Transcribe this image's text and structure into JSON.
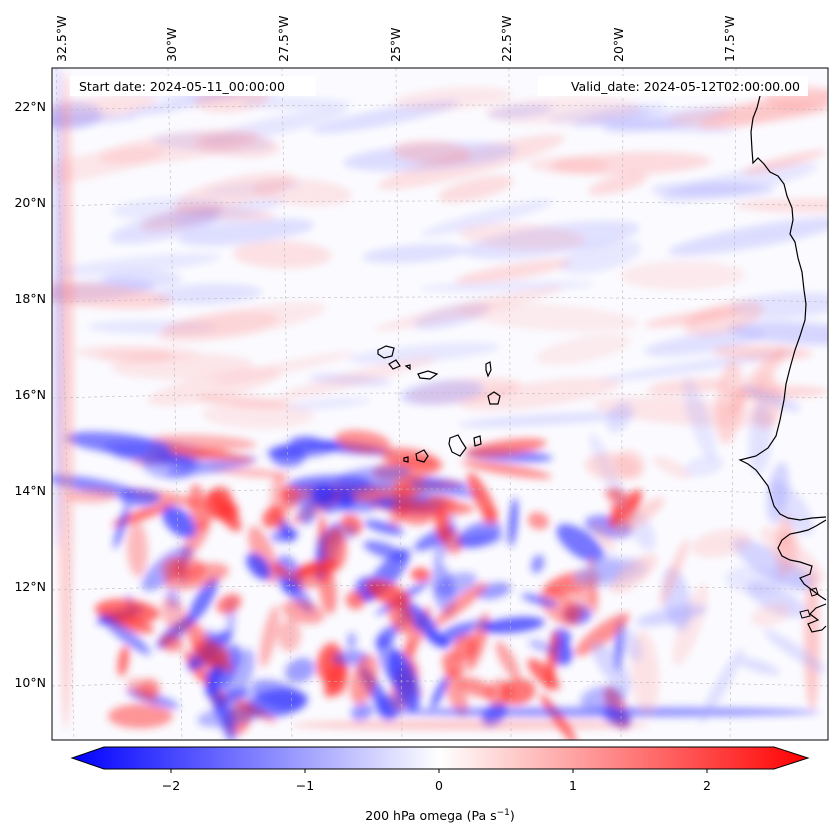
{
  "map": {
    "lon_labels": [
      "32.5°W",
      "30°W",
      "27.5°W",
      "25°W",
      "22.5°W",
      "20°W",
      "17.5°W"
    ],
    "lat_labels": [
      "22°N",
      "20°N",
      "18°N",
      "16°N",
      "14°N",
      "12°N",
      "10°N"
    ],
    "start_label": "Start date: 2024-05-11_00:00:00",
    "valid_label": "Valid_date: 2024-05-12T02:00:00.00",
    "field": "200 hPa omega",
    "extent": {
      "lon_min": -33.0,
      "lon_max": -15.5,
      "lat_min": 8.8,
      "lat_max": 22.8
    }
  },
  "colorbar": {
    "ticks": [
      "−2",
      "−1",
      "0",
      "1",
      "2"
    ],
    "tick_values": [
      -2,
      -1,
      0,
      1,
      2
    ],
    "range": [
      -2.5,
      2.5
    ],
    "label_main": "200 hPa omega (Pa s",
    "label_sup": "−1",
    "label_tail": ")",
    "cmap": "bwr",
    "low_color": "#0000ff",
    "mid_color": "#ffffff",
    "high_color": "#ff0000"
  }
}
